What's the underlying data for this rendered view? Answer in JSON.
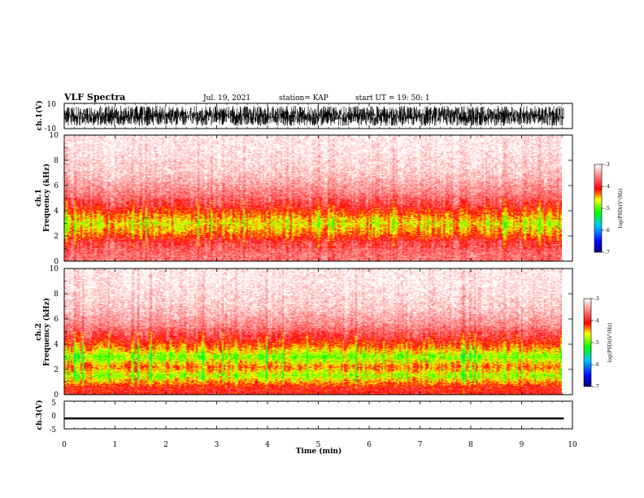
{
  "header": {
    "title": "VLF Spectra",
    "date": "Jul. 19, 2021",
    "station": "station= KAP",
    "start": "start UT =  19: 50: 1"
  },
  "chart_data": [
    {
      "type": "line",
      "name": "channel-1-waveform",
      "ylabel": "ch.1(V)",
      "ylim": [
        -10,
        10
      ],
      "y_ticks": [
        "10",
        "-10"
      ],
      "xlim": [
        0,
        10
      ],
      "data_span_min": [
        0,
        9.83
      ],
      "noise_band_v": [
        -8,
        8
      ]
    },
    {
      "type": "heatmap",
      "name": "channel-1-spectrogram",
      "ylabel": "ch.1\nFrequency (kHz)",
      "ylim": [
        0,
        10
      ],
      "y_ticks": [
        "0",
        "2",
        "4",
        "6",
        "8",
        "10"
      ],
      "xlim": [
        0,
        10
      ],
      "colorbar": {
        "label": "log(PSD)(V²/Hz)",
        "range": [
          -7,
          -3
        ],
        "ticks": [
          "-3",
          "-4",
          "-5",
          "-6",
          "-7"
        ]
      },
      "band_profile": [
        {
          "f_khz": 0.5,
          "level": -3.6
        },
        {
          "f_khz": 1.5,
          "level": -3.8
        },
        {
          "f_khz": 2.2,
          "level": -4.3
        },
        {
          "f_khz": 3.0,
          "level": -4.6
        },
        {
          "f_khz": 3.8,
          "level": -4.2
        },
        {
          "f_khz": 4.5,
          "level": -3.8
        },
        {
          "f_khz": 5.5,
          "level": -3.5
        },
        {
          "f_khz": 7.0,
          "level": -3.2
        },
        {
          "f_khz": 9.0,
          "level": -3.05
        }
      ]
    },
    {
      "type": "heatmap",
      "name": "channel-2-spectrogram",
      "ylabel": "ch.2\nFrequency (kHz)",
      "ylim": [
        0,
        10
      ],
      "y_ticks": [
        "0",
        "2",
        "4",
        "6",
        "8",
        "10"
      ],
      "xlim": [
        0,
        10
      ],
      "colorbar": {
        "label": "log(PSD)(V²/Hz)",
        "range": [
          -7,
          -3
        ],
        "ticks": [
          "-3",
          "-4",
          "-5",
          "-6",
          "-7"
        ]
      },
      "band_profile": [
        {
          "f_khz": 0.5,
          "level": -4.0
        },
        {
          "f_khz": 1.5,
          "level": -4.8
        },
        {
          "f_khz": 2.2,
          "level": -4.3
        },
        {
          "f_khz": 3.0,
          "level": -4.9
        },
        {
          "f_khz": 3.8,
          "level": -4.3
        },
        {
          "f_khz": 4.5,
          "level": -3.9
        },
        {
          "f_khz": 5.5,
          "level": -3.5
        },
        {
          "f_khz": 7.0,
          "level": -3.2
        },
        {
          "f_khz": 9.0,
          "level": -3.05
        }
      ]
    },
    {
      "type": "line",
      "name": "channel-3-waveform",
      "ylabel": "ch.3(V)",
      "ylim": [
        -5,
        5
      ],
      "y_ticks": [
        "5",
        "0",
        "-5"
      ],
      "xlim": [
        0,
        10
      ],
      "data_span_min": [
        0,
        9.83
      ],
      "level_v": -1.2,
      "band_v": [
        -1.6,
        -0.9
      ]
    }
  ],
  "xaxis": {
    "label": "Time (min)",
    "ticks": [
      "0",
      "1",
      "2",
      "3",
      "4",
      "5",
      "6",
      "7",
      "8",
      "9",
      "10"
    ],
    "range": [
      0,
      10
    ]
  },
  "colors": {
    "frame": "#000000",
    "waveform": "#000000",
    "colormap": [
      "#000070",
      "#0000ff",
      "#00c8ff",
      "#00ff00",
      "#ffff00",
      "#ff0000",
      "#ffffff"
    ]
  }
}
